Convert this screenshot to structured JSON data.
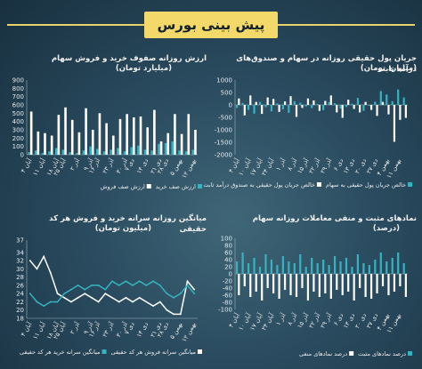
{
  "header": {
    "title": "پیش بینی بورس"
  },
  "colors": {
    "teal": "#36b3c0",
    "white": "#ffffff",
    "gold": "#f3d86a"
  },
  "chart_data": [
    {
      "id": "flow",
      "type": "bar",
      "title": "جریان پول حقیقی روزانه در سهام و صندوق‌های درآمد ثابت",
      "subtitle": "(میلیارد تومان)",
      "ylim": [
        -2000,
        1000
      ],
      "yticks": [
        1000,
        500,
        0,
        -500,
        -1000,
        -1500,
        -2000
      ],
      "series": [
        {
          "name": "خالص جریان پول حقیقی به سهام",
          "color": "#36b3c0",
          "values": [
            -120,
            80,
            -200,
            -350,
            120,
            -90,
            -260,
            60,
            -180,
            -320,
            150,
            90,
            -60,
            -130,
            40,
            -210,
            110,
            70,
            -150,
            -80,
            50,
            280,
            -240,
            -40,
            130,
            560,
            420,
            150,
            620,
            300
          ]
        },
        {
          "name": "خالص جریان پول حقیقی به صندوق درآمد ثابت",
          "color": "#ffffff",
          "values": [
            260,
            -420,
            380,
            120,
            -360,
            300,
            240,
            -280,
            140,
            350,
            -480,
            -120,
            260,
            180,
            -240,
            160,
            380,
            -300,
            -520,
            210,
            -160,
            -300,
            120,
            -200,
            -440,
            120,
            -380,
            -1480,
            -600,
            -520
          ]
        }
      ],
      "xlabels": [
        "۴ آبان",
        "۱۰ آبان",
        "۱۷ آبان",
        "۲۴ آبان",
        "۱ آذر",
        "۸ آذر",
        "۱۵ آذر",
        "۲۲ آذر",
        "۲۹ آذر",
        "۶ دی",
        "۱۳ دی",
        "۲۰ دی",
        "۲۷ دی",
        "۴ بهمن",
        "۱۱ بهمن"
      ],
      "xlabel_index": [
        0,
        2,
        4,
        6,
        8,
        10,
        12,
        14,
        16,
        18,
        20,
        22,
        24,
        26,
        28
      ]
    },
    {
      "id": "queues",
      "type": "bar",
      "title": "ارزش روزانه صفوف خرید و فروش سهام",
      "subtitle": "(میلیارد تومان)",
      "ylim": [
        0,
        900
      ],
      "yticks": [
        900,
        800,
        700,
        600,
        500,
        400,
        300,
        200,
        100,
        0
      ],
      "series": [
        {
          "name": "ارزش صف خرید",
          "color": "#36b3c0",
          "values": [
            30,
            50,
            20,
            40,
            80,
            60,
            30,
            20,
            50,
            100,
            70,
            40,
            60,
            80,
            40,
            90,
            110,
            60,
            50,
            130,
            140,
            160,
            50,
            40,
            60
          ]
        },
        {
          "name": "ارزش صف فروش",
          "color": "#ffffff",
          "values": [
            520,
            280,
            260,
            230,
            480,
            570,
            420,
            270,
            560,
            300,
            500,
            380,
            230,
            430,
            490,
            450,
            460,
            330,
            540,
            160,
            260,
            490,
            250,
            490,
            300
          ]
        }
      ],
      "xlabels": [
        "۴ آبان",
        "۱۱ آبان",
        "۱۸ آبان",
        "۲۵ آبان",
        "۲ آذر",
        "۹ آذر",
        "۱۶ آذر",
        "۲۳ آذر",
        "۳۰ آذر",
        "۷ دی",
        "۱۴ دی",
        "۲۱ دی",
        "۲۸ دی",
        "۵ بهمن",
        "۱۲ بهمن"
      ],
      "xlabel_index": [
        0,
        2,
        4,
        5,
        7,
        9,
        10,
        12,
        14,
        15,
        17,
        19,
        20,
        22,
        24
      ]
    },
    {
      "id": "symbols",
      "type": "bar",
      "title": "نمادهای مثبت و منفی معاملات روزانه سهام",
      "subtitle": "(درصد)",
      "ylim": [
        -100,
        100
      ],
      "yticks": [
        100,
        80,
        60,
        40,
        20,
        0,
        -20,
        -40,
        -60,
        -80,
        -100
      ],
      "series": [
        {
          "name": "درصد نمادهای مثبت",
          "color": "#36b3c0",
          "values": [
            35,
            60,
            30,
            45,
            20,
            55,
            40,
            25,
            50,
            35,
            30,
            55,
            20,
            45,
            30,
            40,
            25,
            50,
            35,
            45,
            20,
            55,
            30,
            25,
            40,
            60,
            35,
            45,
            60,
            30
          ]
        },
        {
          "name": "درصد نمادهای منفی",
          "color": "#ffffff",
          "values": [
            -60,
            -35,
            -65,
            -50,
            -75,
            -40,
            -55,
            -70,
            -45,
            -60,
            -65,
            -40,
            -75,
            -50,
            -65,
            -55,
            -70,
            -45,
            -60,
            -50,
            -75,
            -40,
            -65,
            -70,
            -55,
            -35,
            -60,
            -50,
            -35,
            -65
          ]
        }
      ],
      "xlabels": [
        "۴ آبان",
        "۱۰ آبان",
        "۱۷ آبان",
        "۲۴ آبان",
        "۱ آذر",
        "۸ آذر",
        "۱۵ آذر",
        "۲۲ آذر",
        "۲۹ آذر",
        "۶ دی",
        "۱۳ دی",
        "۲۰ دی",
        "۲۷ دی",
        "۴ بهمن",
        "۱۱ بهمن"
      ],
      "xlabel_index": [
        0,
        2,
        4,
        6,
        8,
        10,
        12,
        14,
        16,
        18,
        20,
        22,
        24,
        26,
        28
      ]
    },
    {
      "id": "per_capita",
      "type": "line",
      "title": "میانگین روزانه سرانه خرید و فروش هر کد حقیقی",
      "subtitle": "(میلیون تومان)",
      "ylim": [
        18,
        37
      ],
      "yticks": [
        37,
        34,
        32,
        30,
        28,
        26,
        24,
        22,
        20,
        18
      ],
      "series": [
        {
          "name": "میانگین سرانه فروش هر کد حقیقی",
          "color": "#ffffff",
          "values": [
            32,
            30,
            33,
            29,
            24,
            23,
            22,
            23,
            24,
            23,
            22,
            24,
            23,
            22,
            23,
            22,
            23,
            22,
            21,
            22,
            20,
            19,
            19,
            27,
            25
          ]
        },
        {
          "name": "میانگین سرانه خرید هر کد حقیقی",
          "color": "#36b3c0",
          "values": [
            24,
            22,
            21,
            22,
            22,
            24,
            25,
            26,
            25,
            26,
            26,
            25,
            27,
            26,
            27,
            26,
            27,
            26,
            27,
            26,
            24,
            23,
            24,
            26,
            24
          ]
        }
      ],
      "xlabels": [
        "۴ آبان",
        "۱۱ آبان",
        "۱۸ آبان",
        "۲۵ آبان",
        "۲ آذر",
        "۹ آذر",
        "۱۶ آذر",
        "۲۳ آذر",
        "۳۰ آذر",
        "۷ دی",
        "۱۴ دی",
        "۲۱ دی",
        "۲۸ دی",
        "۵ بهمن",
        "۱۲ بهمن"
      ],
      "xlabel_index": [
        0,
        2,
        4,
        5,
        7,
        9,
        10,
        12,
        14,
        15,
        17,
        19,
        20,
        22,
        24
      ]
    }
  ]
}
